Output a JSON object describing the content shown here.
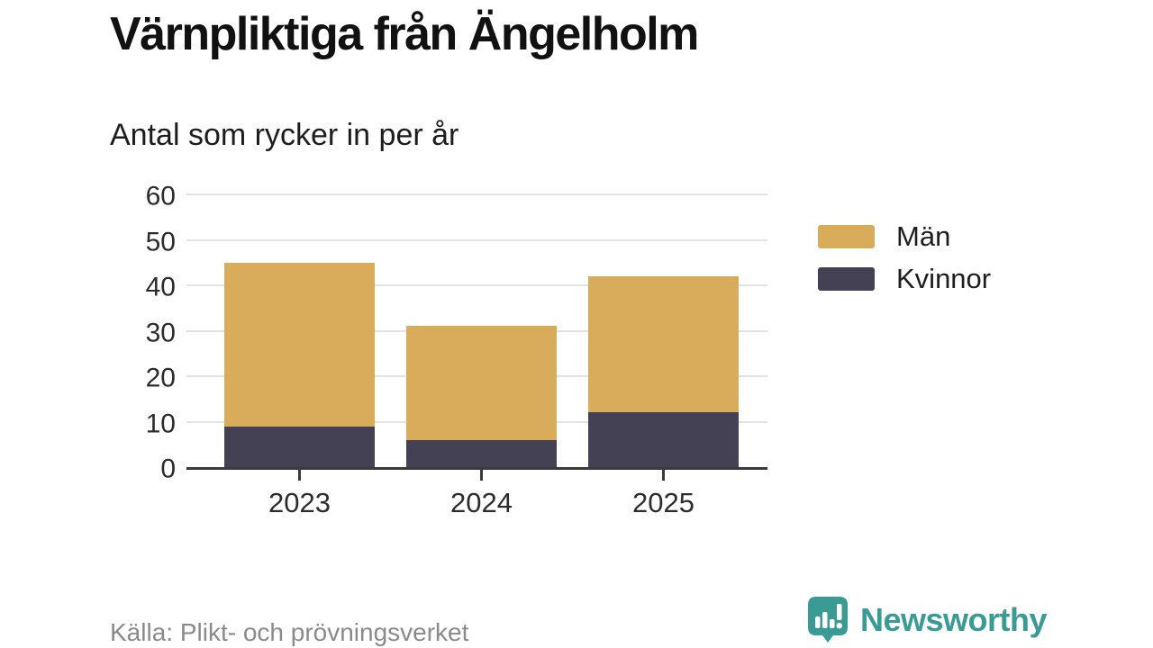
{
  "header": {
    "title": "Värnpliktiga från Ängelholm",
    "subtitle": "Antal som rycker in per år"
  },
  "chart_data": {
    "type": "bar",
    "stacked": true,
    "title": "Värnpliktiga från Ängelholm",
    "subtitle": "Antal som rycker in per år",
    "categories": [
      "2023",
      "2024",
      "2025"
    ],
    "series": [
      {
        "name": "Kvinnor",
        "color": "#434153",
        "values": [
          9,
          6,
          12
        ]
      },
      {
        "name": "Män",
        "color": "#D9AC5C",
        "values": [
          36,
          25,
          30
        ]
      }
    ],
    "totals": [
      45,
      31,
      42
    ],
    "xlabel": "",
    "ylabel": "",
    "ylim": [
      0,
      60
    ],
    "yticks": [
      0,
      10,
      20,
      30,
      40,
      50,
      60
    ],
    "grid": true,
    "legend_position": "right"
  },
  "legend": {
    "items": [
      {
        "label": "Män",
        "color": "#D9AC5C"
      },
      {
        "label": "Kvinnor",
        "color": "#434153"
      }
    ]
  },
  "footer": {
    "source": "Källa: Plikt- och prövningsverket",
    "brand": "Newsworthy"
  },
  "colors": {
    "men": "#D9AC5C",
    "women": "#434153",
    "grid": "#E3E3E3",
    "axis": "#3a3a3a",
    "text": "#1d1d1d",
    "source": "#8a8a8a",
    "brand_teal": "#3A9B95"
  }
}
